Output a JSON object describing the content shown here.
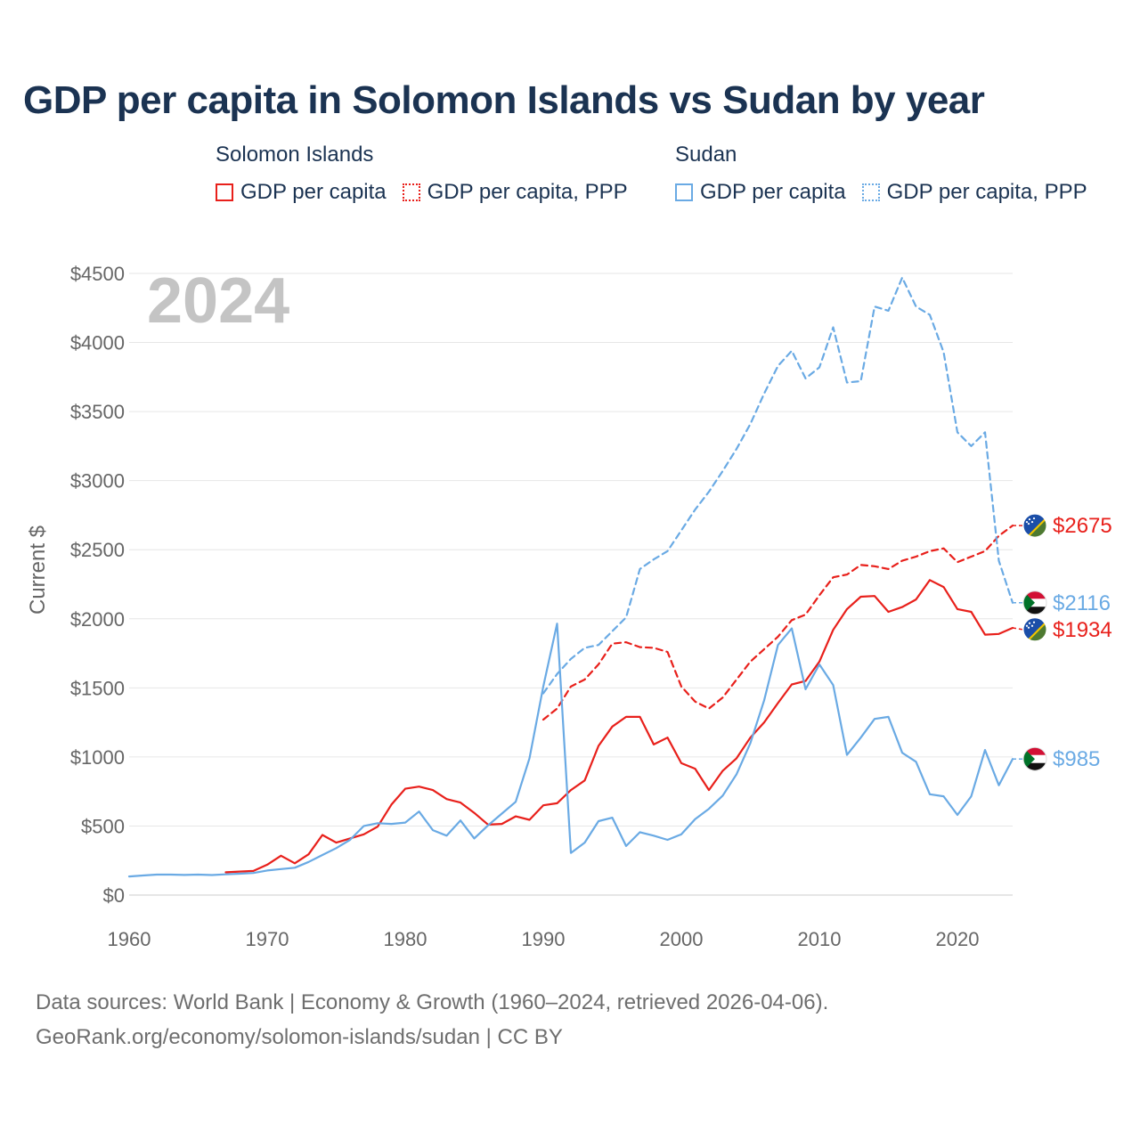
{
  "title": "GDP per capita in Solomon Islands vs Sudan by year",
  "legend": {
    "groups": [
      {
        "name": "Solomon Islands",
        "items": [
          "GDP per capita",
          "GDP per capita, PPP"
        ]
      },
      {
        "name": "Sudan",
        "items": [
          "GDP per capita",
          "GDP per capita, PPP"
        ]
      }
    ]
  },
  "sources": {
    "line1": "Data sources: World Bank | Economy & Growth (1960–2024, retrieved 2026-04-06).",
    "line2": "GeoRank.org/economy/solomon-islands/sudan | CC BY"
  },
  "colors": {
    "solomon": "#e8201b",
    "sudan": "#6aaae4",
    "grid": "#e6e6e6",
    "axis": "#cccccc"
  },
  "chart_data": {
    "type": "line",
    "title": "GDP per capita in Solomon Islands vs Sudan by year",
    "year_label": "2024",
    "ylabel": "Current $",
    "xlabel": "",
    "xlim": [
      1960,
      2024
    ],
    "ylim": [
      0,
      4500
    ],
    "x_ticks": [
      1960,
      1970,
      1980,
      1990,
      2000,
      2010,
      2020
    ],
    "y_ticks": [
      0,
      500,
      1000,
      1500,
      2000,
      2500,
      3000,
      3500,
      4000,
      4500
    ],
    "y_tick_labels": [
      "$0",
      "$500",
      "$1000",
      "$1500",
      "$2000",
      "$2500",
      "$3000",
      "$3500",
      "$4000",
      "$4500"
    ],
    "grid": true,
    "series": [
      {
        "name": "Solomon Islands GDP per capita",
        "country": "Solomon Islands",
        "style": "solid",
        "color": "#e8201b",
        "end_label": "$1934",
        "end_flag": "solomon",
        "x": [
          1967,
          1968,
          1969,
          1970,
          1971,
          1972,
          1973,
          1974,
          1975,
          1976,
          1977,
          1978,
          1979,
          1980,
          1981,
          1982,
          1983,
          1984,
          1985,
          1986,
          1987,
          1988,
          1989,
          1990,
          1991,
          1992,
          1993,
          1994,
          1995,
          1996,
          1997,
          1998,
          1999,
          2000,
          2001,
          2002,
          2003,
          2004,
          2005,
          2006,
          2007,
          2008,
          2009,
          2010,
          2011,
          2012,
          2013,
          2014,
          2015,
          2016,
          2017,
          2018,
          2019,
          2020,
          2021,
          2022,
          2023,
          2024
        ],
        "y": [
          165,
          170,
          175,
          220,
          285,
          230,
          295,
          435,
          380,
          410,
          440,
          495,
          655,
          770,
          785,
          760,
          695,
          670,
          595,
          510,
          515,
          570,
          545,
          650,
          665,
          760,
          830,
          1080,
          1220,
          1290,
          1290,
          1090,
          1140,
          955,
          915,
          760,
          900,
          990,
          1140,
          1250,
          1390,
          1525,
          1550,
          1690,
          1920,
          2070,
          2160,
          2165,
          2050,
          2085,
          2140,
          2280,
          2230,
          2070,
          2050,
          1885,
          1890,
          1934
        ]
      },
      {
        "name": "Solomon Islands GDP per capita, PPP",
        "country": "Solomon Islands",
        "style": "dashed",
        "color": "#e8201b",
        "end_label": "$2675",
        "end_flag": "solomon",
        "x": [
          1990,
          1991,
          1992,
          1993,
          1994,
          1995,
          1996,
          1997,
          1998,
          1999,
          2000,
          2001,
          2002,
          2003,
          2004,
          2005,
          2006,
          2007,
          2008,
          2009,
          2010,
          2011,
          2012,
          2013,
          2014,
          2015,
          2016,
          2017,
          2018,
          2019,
          2020,
          2021,
          2022,
          2023,
          2024
        ],
        "y": [
          1270,
          1350,
          1510,
          1560,
          1670,
          1820,
          1830,
          1795,
          1790,
          1760,
          1510,
          1400,
          1350,
          1430,
          1560,
          1690,
          1780,
          1870,
          1990,
          2030,
          2170,
          2300,
          2320,
          2390,
          2380,
          2360,
          2420,
          2450,
          2490,
          2510,
          2410,
          2450,
          2490,
          2600,
          2675
        ]
      },
      {
        "name": "Sudan GDP per capita",
        "country": "Sudan",
        "style": "solid",
        "color": "#6aaae4",
        "end_label": "$985",
        "end_flag": "sudan",
        "x": [
          1960,
          1961,
          1962,
          1963,
          1964,
          1965,
          1966,
          1967,
          1968,
          1969,
          1970,
          1971,
          1972,
          1973,
          1974,
          1975,
          1976,
          1977,
          1978,
          1979,
          1980,
          1981,
          1982,
          1983,
          1984,
          1985,
          1986,
          1987,
          1988,
          1989,
          1990,
          1991,
          1992,
          1993,
          1994,
          1995,
          1996,
          1997,
          1998,
          1999,
          2000,
          2001,
          2002,
          2003,
          2004,
          2005,
          2006,
          2007,
          2008,
          2009,
          2010,
          2011,
          2012,
          2013,
          2014,
          2015,
          2016,
          2017,
          2018,
          2019,
          2020,
          2021,
          2022,
          2023,
          2024
        ],
        "y": [
          135,
          142,
          148,
          148,
          146,
          148,
          145,
          150,
          155,
          160,
          178,
          188,
          198,
          240,
          290,
          340,
          400,
          500,
          520,
          515,
          525,
          605,
          470,
          430,
          540,
          410,
          505,
          590,
          675,
          990,
          1510,
          1965,
          305,
          380,
          535,
          560,
          355,
          455,
          430,
          400,
          440,
          550,
          625,
          720,
          875,
          1100,
          1410,
          1810,
          1930,
          1490,
          1670,
          1520,
          1015,
          1140,
          1275,
          1290,
          1030,
          965,
          730,
          715,
          580,
          715,
          1050,
          795,
          985
        ]
      },
      {
        "name": "Sudan GDP per capita, PPP",
        "country": "Sudan",
        "style": "dashed",
        "color": "#6aaae4",
        "end_label": "$2116",
        "end_flag": "sudan",
        "x": [
          1990,
          1991,
          1992,
          1993,
          1994,
          1995,
          1996,
          1997,
          1998,
          1999,
          2000,
          2001,
          2002,
          2003,
          2004,
          2005,
          2006,
          2007,
          2008,
          2009,
          2010,
          2011,
          2012,
          2013,
          2014,
          2015,
          2016,
          2017,
          2018,
          2019,
          2020,
          2021,
          2022,
          2023,
          2024
        ],
        "y": [
          1460,
          1600,
          1710,
          1790,
          1810,
          1910,
          2010,
          2360,
          2430,
          2490,
          2640,
          2790,
          2920,
          3070,
          3230,
          3410,
          3630,
          3830,
          3940,
          3740,
          3820,
          4110,
          3710,
          3720,
          4260,
          4230,
          4470,
          4260,
          4200,
          3930,
          3350,
          3250,
          3350,
          2420,
          2116
        ]
      }
    ]
  }
}
